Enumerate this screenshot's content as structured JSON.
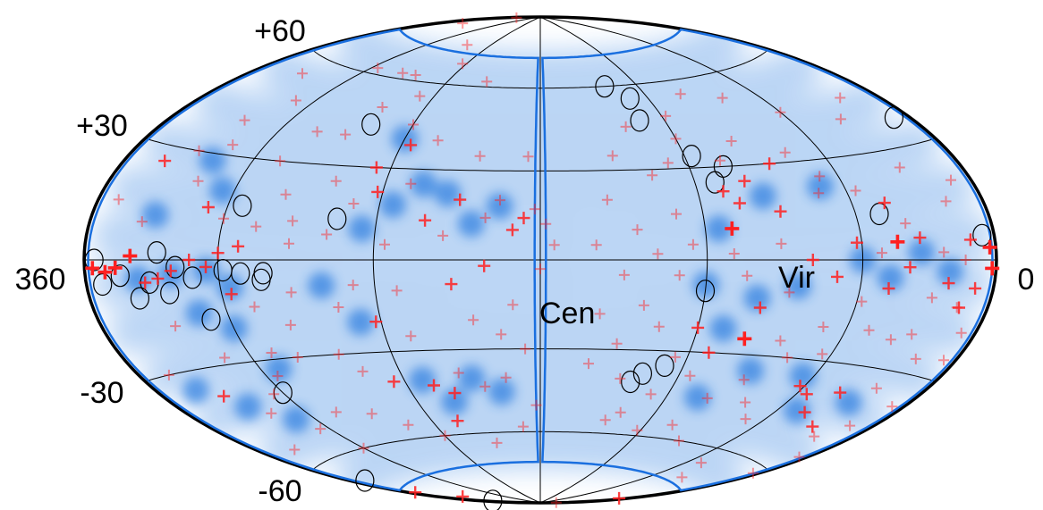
{
  "chart_data": {
    "type": "scatter",
    "projection": "hammer-aitoff",
    "coordinates": "supergalactic",
    "title": "",
    "xlabel": "",
    "ylabel": "",
    "lon_range": [
      360,
      0
    ],
    "lat_range": [
      -90,
      90
    ],
    "lat_tick_labels": [
      "+60",
      "+30",
      "-30",
      "-60"
    ],
    "lon_tick_labels": [
      "360",
      "0"
    ],
    "graticule": {
      "lat_step": 30,
      "lon_step": 60
    },
    "colors": {
      "background_map": "#2f7fe0",
      "events": "#ff2020",
      "outline": "#1a6fdf",
      "sources": "#000000"
    },
    "annotations": [
      {
        "text": "Vir",
        "lon": 0,
        "lat": -8
      },
      {
        "text": "Cen",
        "lon": 8,
        "lat": -25
      }
    ],
    "exposure_boundary": {
      "lon_halfwidth": 2,
      "lat_range": [
        -72,
        72
      ],
      "lobes": [
        "left",
        "right"
      ]
    },
    "sources": [
      {
        "lon": 8,
        "lat": 37
      },
      {
        "lon": 6,
        "lat": 6
      },
      {
        "lon": 355,
        "lat": 0
      },
      {
        "lon": 352,
        "lat": -6
      },
      {
        "lon": 343,
        "lat": -4
      },
      {
        "lon": 336,
        "lat": -10
      },
      {
        "lon": 330,
        "lat": -6
      },
      {
        "lon": 326,
        "lat": 2
      },
      {
        "lon": 322,
        "lat": -9
      },
      {
        "lon": 318,
        "lat": -2
      },
      {
        "lon": 311,
        "lat": -5
      },
      {
        "lon": 308,
        "lat": -17
      },
      {
        "lon": 298,
        "lat": -3
      },
      {
        "lon": 291,
        "lat": -4
      },
      {
        "lon": 283,
        "lat": -6
      },
      {
        "lon": 294,
        "lat": 16
      },
      {
        "lon": 282,
        "lat": -4
      },
      {
        "lon": 255,
        "lat": 13
      },
      {
        "lon": 352,
        "lat": -67
      },
      {
        "lon": 354,
        "lat": -84
      },
      {
        "lon": 300,
        "lat": -40
      },
      {
        "lon": 260,
        "lat": 44
      },
      {
        "lon": 140,
        "lat": 60
      },
      {
        "lon": 130,
        "lat": 55
      },
      {
        "lon": 132,
        "lat": 47
      },
      {
        "lon": 117,
        "lat": 34
      },
      {
        "lon": 106,
        "lat": 30
      },
      {
        "lon": 112,
        "lat": 25
      },
      {
        "lon": 50,
        "lat": 13
      },
      {
        "lon": 120,
        "lat": -10
      },
      {
        "lon": 136,
        "lat": -38
      },
      {
        "lon": 140,
        "lat": -41
      },
      {
        "lon": 128,
        "lat": -35
      }
    ],
    "events": [
      {
        "lon": 2,
        "lat": -2,
        "w": 3
      },
      {
        "lon": 356,
        "lat": -2,
        "w": 3
      },
      {
        "lon": 350,
        "lat": -3,
        "w": 3
      },
      {
        "lon": 345,
        "lat": -2,
        "w": 3
      },
      {
        "lon": 338,
        "lat": 1,
        "w": 3
      },
      {
        "lon": 332,
        "lat": -6,
        "w": 2
      },
      {
        "lon": 326,
        "lat": -5,
        "w": 2
      },
      {
        "lon": 320,
        "lat": -3,
        "w": 2
      },
      {
        "lon": 312,
        "lat": 0,
        "w": 2
      },
      {
        "lon": 305,
        "lat": -2,
        "w": 2
      },
      {
        "lon": 300,
        "lat": 2,
        "w": 2
      },
      {
        "lon": 296,
        "lat": -10,
        "w": 2
      },
      {
        "lon": 292,
        "lat": 4,
        "w": 2
      },
      {
        "lon": 288,
        "lat": -14,
        "w": 1
      },
      {
        "lon": 286,
        "lat": 10,
        "w": 1
      },
      {
        "lon": 3,
        "lat": 3,
        "w": 3
      },
      {
        "lon": 9,
        "lat": -7,
        "w": 2
      },
      {
        "lon": 14,
        "lat": -12,
        "w": 2
      },
      {
        "lon": 7,
        "lat": -18,
        "w": 1
      },
      {
        "lon": 12,
        "lat": 5,
        "w": 2
      },
      {
        "lon": 6,
        "lat": -25,
        "w": 1
      },
      {
        "lon": 340,
        "lat": 26,
        "w": 2
      },
      {
        "lon": 328,
        "lat": 30,
        "w": 1
      },
      {
        "lon": 318,
        "lat": 22,
        "w": 1
      },
      {
        "lon": 308,
        "lat": 15,
        "w": 2
      },
      {
        "lon": 300,
        "lat": 12,
        "w": 1
      },
      {
        "lon": 322,
        "lat": 40,
        "w": 1
      },
      {
        "lon": 310,
        "lat": 48,
        "w": 1
      },
      {
        "lon": 332,
        "lat": 55,
        "w": 1
      },
      {
        "lon": 296,
        "lat": 62,
        "w": 1
      },
      {
        "lon": 330,
        "lat": -38,
        "w": 2
      },
      {
        "lon": 318,
        "lat": -45,
        "w": 1
      },
      {
        "lon": 305,
        "lat": -52,
        "w": 1
      },
      {
        "lon": 295,
        "lat": -35,
        "w": 1
      },
      {
        "lon": 340,
        "lat": -55,
        "w": 1
      },
      {
        "lon": 312,
        "lat": -28,
        "w": 1
      },
      {
        "lon": 285,
        "lat": -48,
        "w": 1
      },
      {
        "lon": 300,
        "lat": -60,
        "w": 1
      },
      {
        "lon": 288,
        "lat": 30,
        "w": 1
      },
      {
        "lon": 272,
        "lat": 12,
        "w": 1
      },
      {
        "lon": 276,
        "lat": -20,
        "w": 1
      },
      {
        "lon": 350,
        "lat": 15,
        "w": 1
      },
      {
        "lon": 315,
        "lat": 33,
        "w": 1
      },
      {
        "lon": 325,
        "lat": -18,
        "w": 1
      },
      {
        "lon": 305,
        "lat": -40,
        "w": 1
      },
      {
        "lon": 290,
        "lat": -28,
        "w": 1
      },
      {
        "lon": 345,
        "lat": -30,
        "w": 1
      },
      {
        "lon": 335,
        "lat": 10,
        "w": 1
      },
      {
        "lon": 352,
        "lat": 87,
        "w": 1
      },
      {
        "lon": 345,
        "lat": 80,
        "w": 1
      },
      {
        "lon": 356,
        "lat": -74,
        "w": 2
      },
      {
        "lon": 345,
        "lat": -80,
        "w": 2
      },
      {
        "lon": 190,
        "lat": 10,
        "w": 2
      },
      {
        "lon": 186,
        "lat": 14,
        "w": 2
      },
      {
        "lon": 182,
        "lat": 17,
        "w": 1
      },
      {
        "lon": 178,
        "lat": 12,
        "w": 1
      },
      {
        "lon": 175,
        "lat": 5,
        "w": 1
      },
      {
        "lon": 195,
        "lat": 20,
        "w": 1
      },
      {
        "lon": 200,
        "lat": 14,
        "w": 1
      },
      {
        "lon": 200,
        "lat": -2,
        "w": 2
      },
      {
        "lon": 210,
        "lat": 20,
        "w": 2
      },
      {
        "lon": 222,
        "lat": 13,
        "w": 2
      },
      {
        "lon": 230,
        "lat": 25,
        "w": 1
      },
      {
        "lon": 225,
        "lat": 40,
        "w": 1
      },
      {
        "lon": 240,
        "lat": 45,
        "w": 1
      },
      {
        "lon": 236,
        "lat": 38,
        "w": 2
      },
      {
        "lon": 246,
        "lat": 30,
        "w": 2
      },
      {
        "lon": 242,
        "lat": 22,
        "w": 2
      },
      {
        "lon": 250,
        "lat": 18,
        "w": 1
      },
      {
        "lon": 258,
        "lat": 8,
        "w": 1
      },
      {
        "lon": 262,
        "lat": 50,
        "w": 1
      },
      {
        "lon": 268,
        "lat": 40,
        "w": 1
      },
      {
        "lon": 260,
        "lat": 25,
        "w": 1
      },
      {
        "lon": 248,
        "lat": 55,
        "w": 1
      },
      {
        "lon": 243,
        "lat": 68,
        "w": 1
      },
      {
        "lon": 265,
        "lat": 62,
        "w": 1
      },
      {
        "lon": 255,
        "lat": -15,
        "w": 1
      },
      {
        "lon": 242,
        "lat": -20,
        "w": 2
      },
      {
        "lon": 232,
        "lat": -10,
        "w": 1
      },
      {
        "lon": 245,
        "lat": -40,
        "w": 2
      },
      {
        "lon": 256,
        "lat": -36,
        "w": 1
      },
      {
        "lon": 228,
        "lat": -42,
        "w": 2
      },
      {
        "lon": 220,
        "lat": -45,
        "w": 2
      },
      {
        "lon": 215,
        "lat": -38,
        "w": 1
      },
      {
        "lon": 205,
        "lat": -43,
        "w": 1
      },
      {
        "lon": 195,
        "lat": -40,
        "w": 1
      },
      {
        "lon": 186,
        "lat": -30,
        "w": 1
      },
      {
        "lon": 226,
        "lat": -55,
        "w": 2
      },
      {
        "lon": 240,
        "lat": -60,
        "w": 1
      },
      {
        "lon": 255,
        "lat": -55,
        "w": 1
      },
      {
        "lon": 268,
        "lat": -50,
        "w": 1
      },
      {
        "lon": 262,
        "lat": -30,
        "w": 1
      },
      {
        "lon": 272,
        "lat": -10,
        "w": 1
      },
      {
        "lon": 272,
        "lat": 5,
        "w": 1
      },
      {
        "lon": 280,
        "lat": -30,
        "w": 1
      },
      {
        "lon": 278,
        "lat": 20,
        "w": 1
      },
      {
        "lon": 282,
        "lat": 40,
        "w": 1
      },
      {
        "lon": 275,
        "lat": 62,
        "w": 1
      },
      {
        "lon": 265,
        "lat": 75,
        "w": 1
      },
      {
        "lon": 215,
        "lat": 62,
        "w": 1
      },
      {
        "lon": 205,
        "lat": 35,
        "w": 1
      },
      {
        "lon": 190,
        "lat": -15,
        "w": 1
      },
      {
        "lon": 182,
        "lat": -50,
        "w": 1
      },
      {
        "lon": 190,
        "lat": -58,
        "w": 1
      },
      {
        "lon": 210,
        "lat": -64,
        "w": 1
      },
      {
        "lon": 180,
        "lat": -3,
        "w": 1
      },
      {
        "lon": 185,
        "lat": 35,
        "w": 1
      },
      {
        "lon": 195,
        "lat": -25,
        "w": 1
      },
      {
        "lon": 230,
        "lat": -25,
        "w": 1
      },
      {
        "lon": 248,
        "lat": -8,
        "w": 1
      },
      {
        "lon": 236,
        "lat": 5,
        "w": 1
      },
      {
        "lon": 215,
        "lat": 8,
        "w": 1
      },
      {
        "lon": 205,
        "lat": -20,
        "w": 1
      },
      {
        "lon": 212,
        "lat": -8,
        "w": 2
      },
      {
        "lon": 110,
        "lat": 10,
        "w": 3
      },
      {
        "lon": 110,
        "lat": 2,
        "w": 1
      },
      {
        "lon": 105,
        "lat": -5,
        "w": 1
      },
      {
        "lon": 98,
        "lat": -15,
        "w": 2
      },
      {
        "lon": 92,
        "lat": 5,
        "w": 1
      },
      {
        "lon": 88,
        "lat": -10,
        "w": 1
      },
      {
        "lon": 80,
        "lat": 0,
        "w": 2
      },
      {
        "lon": 70,
        "lat": -5,
        "w": 2
      },
      {
        "lon": 62,
        "lat": 5,
        "w": 2
      },
      {
        "lon": 58,
        "lat": -12,
        "w": 1
      },
      {
        "lon": 52,
        "lat": 2,
        "w": 1
      },
      {
        "lon": 48,
        "lat": -8,
        "w": 2
      },
      {
        "lon": 45,
        "lat": 5,
        "w": 3
      },
      {
        "lon": 40,
        "lat": -2,
        "w": 2
      },
      {
        "lon": 35,
        "lat": 6,
        "w": 2
      },
      {
        "lon": 28,
        "lat": -10,
        "w": 1
      },
      {
        "lon": 25,
        "lat": 2,
        "w": 1
      },
      {
        "lon": 22,
        "lat": -6,
        "w": 2
      },
      {
        "lon": 15,
        "lat": 0,
        "w": 1
      },
      {
        "lon": 15,
        "lat": -12,
        "w": 1
      },
      {
        "lon": 30,
        "lat": -20,
        "w": 1
      },
      {
        "lon": 20,
        "lat": -26,
        "w": 1
      },
      {
        "lon": 38,
        "lat": -22,
        "w": 1
      },
      {
        "lon": 50,
        "lat": -20,
        "w": 1
      },
      {
        "lon": 70,
        "lat": -20,
        "w": 1
      },
      {
        "lon": 85,
        "lat": -25,
        "w": 1
      },
      {
        "lon": 100,
        "lat": -25,
        "w": 3
      },
      {
        "lon": 62,
        "lat": -38,
        "w": 2
      },
      {
        "lon": 55,
        "lat": -40,
        "w": 2
      },
      {
        "lon": 45,
        "lat": -45,
        "w": 2
      },
      {
        "lon": 40,
        "lat": -38,
        "w": 2
      },
      {
        "lon": 30,
        "lat": -48,
        "w": 2
      },
      {
        "lon": 20,
        "lat": -50,
        "w": 1
      },
      {
        "lon": 12,
        "lat": -45,
        "w": 1
      },
      {
        "lon": 25,
        "lat": -35,
        "w": 1
      },
      {
        "lon": 70,
        "lat": -50,
        "w": 1
      },
      {
        "lon": 50,
        "lat": -65,
        "w": 1
      },
      {
        "lon": 35,
        "lat": -70,
        "w": 1
      },
      {
        "lon": 78,
        "lat": -30,
        "w": 1
      },
      {
        "lon": 90,
        "lat": -38,
        "w": 1
      },
      {
        "lon": 100,
        "lat": -45,
        "w": 1
      },
      {
        "lon": 112,
        "lat": -30,
        "w": 2
      },
      {
        "lon": 120,
        "lat": -22,
        "w": 2
      },
      {
        "lon": 105,
        "lat": -55,
        "w": 1
      },
      {
        "lon": 90,
        "lat": -60,
        "w": 1
      },
      {
        "lon": 80,
        "lat": -45,
        "w": 1
      },
      {
        "lon": 64,
        "lat": -28,
        "w": 1
      },
      {
        "lon": 72,
        "lat": 20,
        "w": 1
      },
      {
        "lon": 90,
        "lat": 15,
        "w": 2
      },
      {
        "lon": 100,
        "lat": 25,
        "w": 2
      },
      {
        "lon": 105,
        "lat": 18,
        "w": 2
      },
      {
        "lon": 110,
        "lat": 22,
        "w": 2
      },
      {
        "lon": 106,
        "lat": 32,
        "w": 1
      },
      {
        "lon": 96,
        "lat": 38,
        "w": 1
      },
      {
        "lon": 86,
        "lat": 30,
        "w": 2
      },
      {
        "lon": 76,
        "lat": 33,
        "w": 1
      },
      {
        "lon": 68,
        "lat": 25,
        "w": 1
      },
      {
        "lon": 56,
        "lat": 20,
        "w": 1
      },
      {
        "lon": 46,
        "lat": 16,
        "w": 2
      },
      {
        "lon": 40,
        "lat": 10,
        "w": 1
      },
      {
        "lon": 120,
        "lat": 40,
        "w": 1
      },
      {
        "lon": 128,
        "lat": 32,
        "w": 1
      },
      {
        "lon": 118,
        "lat": 48,
        "w": 1
      },
      {
        "lon": 136,
        "lat": 28,
        "w": 1
      },
      {
        "lon": 130,
        "lat": 15,
        "w": 1
      },
      {
        "lon": 125,
        "lat": 5,
        "w": 1
      },
      {
        "lon": 138,
        "lat": 2,
        "w": 1
      },
      {
        "lon": 145,
        "lat": 10,
        "w": 1
      },
      {
        "lon": 150,
        "lat": -5,
        "w": 1
      },
      {
        "lon": 142,
        "lat": -15,
        "w": 1
      },
      {
        "lon": 135,
        "lat": -22,
        "w": 1
      },
      {
        "lon": 150,
        "lat": -28,
        "w": 1
      },
      {
        "lon": 145,
        "lat": -40,
        "w": 1
      },
      {
        "lon": 138,
        "lat": -52,
        "w": 1
      },
      {
        "lon": 128,
        "lat": -45,
        "w": 1
      },
      {
        "lon": 122,
        "lat": -58,
        "w": 1
      },
      {
        "lon": 115,
        "lat": -38,
        "w": 1
      },
      {
        "lon": 150,
        "lat": 35,
        "w": 1
      },
      {
        "lon": 140,
        "lat": 45,
        "w": 1
      },
      {
        "lon": 155,
        "lat": 20,
        "w": 1
      },
      {
        "lon": 160,
        "lat": 5,
        "w": 1
      },
      {
        "lon": 158,
        "lat": -18,
        "w": 1
      },
      {
        "lon": 160,
        "lat": -35,
        "w": 1
      },
      {
        "lon": 100,
        "lat": 55,
        "w": 1
      },
      {
        "lon": 80,
        "lat": 52,
        "w": 1
      },
      {
        "lon": 60,
        "lat": 45,
        "w": 1
      },
      {
        "lon": 30,
        "lat": 25,
        "w": 1
      },
      {
        "lon": 18,
        "lat": 15,
        "w": 1
      },
      {
        "lon": 10,
        "lat": 20,
        "w": 1
      },
      {
        "lon": 6,
        "lat": -38,
        "w": 1
      },
      {
        "lon": 4,
        "lat": -55,
        "w": 1
      },
      {
        "lon": 3,
        "lat": -62,
        "w": 1
      },
      {
        "lon": 5,
        "lat": -80,
        "w": 2
      },
      {
        "lon": 2,
        "lat": -88,
        "w": 1
      },
      {
        "lon": 20,
        "lat": 45,
        "w": 1
      },
      {
        "lon": 35,
        "lat": 40,
        "w": 1
      },
      {
        "lon": 130,
        "lat": -5,
        "w": 1
      },
      {
        "lon": 125,
        "lat": -32,
        "w": 1
      },
      {
        "lon": 144,
        "lat": -55,
        "w": 1
      }
    ]
  }
}
